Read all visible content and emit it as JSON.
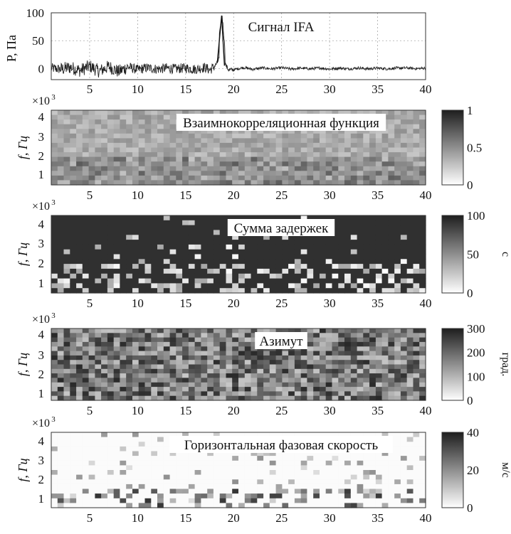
{
  "chart_data": [
    {
      "type": "line",
      "title": "Сигнал IFA",
      "ylabel": "P, Па",
      "xlim": [
        1,
        40
      ],
      "ylim": [
        -20,
        100
      ],
      "xticks": [
        "5",
        "10",
        "15",
        "20",
        "25",
        "30",
        "35",
        "40"
      ],
      "yticks": [
        "0",
        "50",
        "100"
      ],
      "grid": true,
      "series": [
        {
          "x": [
            1,
            2,
            3,
            4,
            5,
            6,
            7,
            8,
            9,
            10,
            11,
            12,
            13,
            14,
            15,
            16,
            17,
            17.5,
            18,
            18.3,
            18.6,
            18.8,
            19,
            19.2,
            19.5,
            20,
            21,
            22,
            23,
            24,
            25,
            26,
            27,
            28,
            29,
            30,
            31,
            32,
            33,
            34,
            35,
            36,
            37,
            38,
            39,
            40
          ],
          "values": [
            2,
            -4,
            6,
            -10,
            12,
            -14,
            10,
            -16,
            8,
            -6,
            4,
            -3,
            2,
            -2,
            3,
            -4,
            6,
            -8,
            10,
            30,
            70,
            95,
            55,
            15,
            -8,
            -6,
            5,
            -4,
            3,
            -2,
            4,
            -3,
            2,
            -2,
            3,
            -3,
            2,
            -2,
            3,
            -2,
            2,
            -2,
            2,
            3,
            -1,
            2
          ]
        }
      ]
    },
    {
      "type": "heatmap",
      "title": "Взаимнокорреляционная функция",
      "ylabel": "f, Гц",
      "ymultiplier": "×10³",
      "xlim": [
        1,
        40
      ],
      "ylim": [
        0.5,
        4.5
      ],
      "xticks": [
        "5",
        "10",
        "15",
        "20",
        "25",
        "30",
        "35",
        "40"
      ],
      "yticks": [
        "1",
        "2",
        "3",
        "4"
      ],
      "colorbar": {
        "ticks": [
          "1",
          "0.5",
          "0"
        ],
        "unit": ""
      },
      "palette": "gray"
    },
    {
      "type": "heatmap",
      "title": "Сумма задержек",
      "ylabel": "f, Гц",
      "ymultiplier": "×10³",
      "xlim": [
        1,
        40
      ],
      "ylim": [
        0.5,
        4.5
      ],
      "xticks": [
        "5",
        "10",
        "15",
        "20",
        "25",
        "30",
        "35",
        "40"
      ],
      "yticks": [
        "1",
        "2",
        "3",
        "4"
      ],
      "colorbar": {
        "ticks": [
          "100",
          "50",
          "0"
        ],
        "unit": "с"
      },
      "palette": "gray"
    },
    {
      "type": "heatmap",
      "title": "Азимут",
      "ylabel": "f, Гц",
      "ymultiplier": "×10³",
      "xlim": [
        1,
        40
      ],
      "ylim": [
        0.5,
        4.5
      ],
      "xticks": [
        "5",
        "10",
        "15",
        "20",
        "25",
        "30",
        "35",
        "40"
      ],
      "yticks": [
        "1",
        "2",
        "3",
        "4"
      ],
      "colorbar": {
        "ticks": [
          "300",
          "200",
          "100",
          "0"
        ],
        "unit": "град."
      },
      "palette": "gray"
    },
    {
      "type": "heatmap",
      "title": "Горизонтальная фазовая скорость",
      "ylabel": "f, Гц",
      "ymultiplier": "×10³",
      "xlim": [
        1,
        40
      ],
      "ylim": [
        0.5,
        4.5
      ],
      "xticks": [
        "5",
        "10",
        "15",
        "20",
        "25",
        "30",
        "35",
        "40"
      ],
      "yticks": [
        "1",
        "2",
        "3",
        "4"
      ],
      "colorbar": {
        "ticks": [
          "40",
          "20",
          "0"
        ],
        "unit": "м/с"
      },
      "palette": "gray"
    }
  ]
}
